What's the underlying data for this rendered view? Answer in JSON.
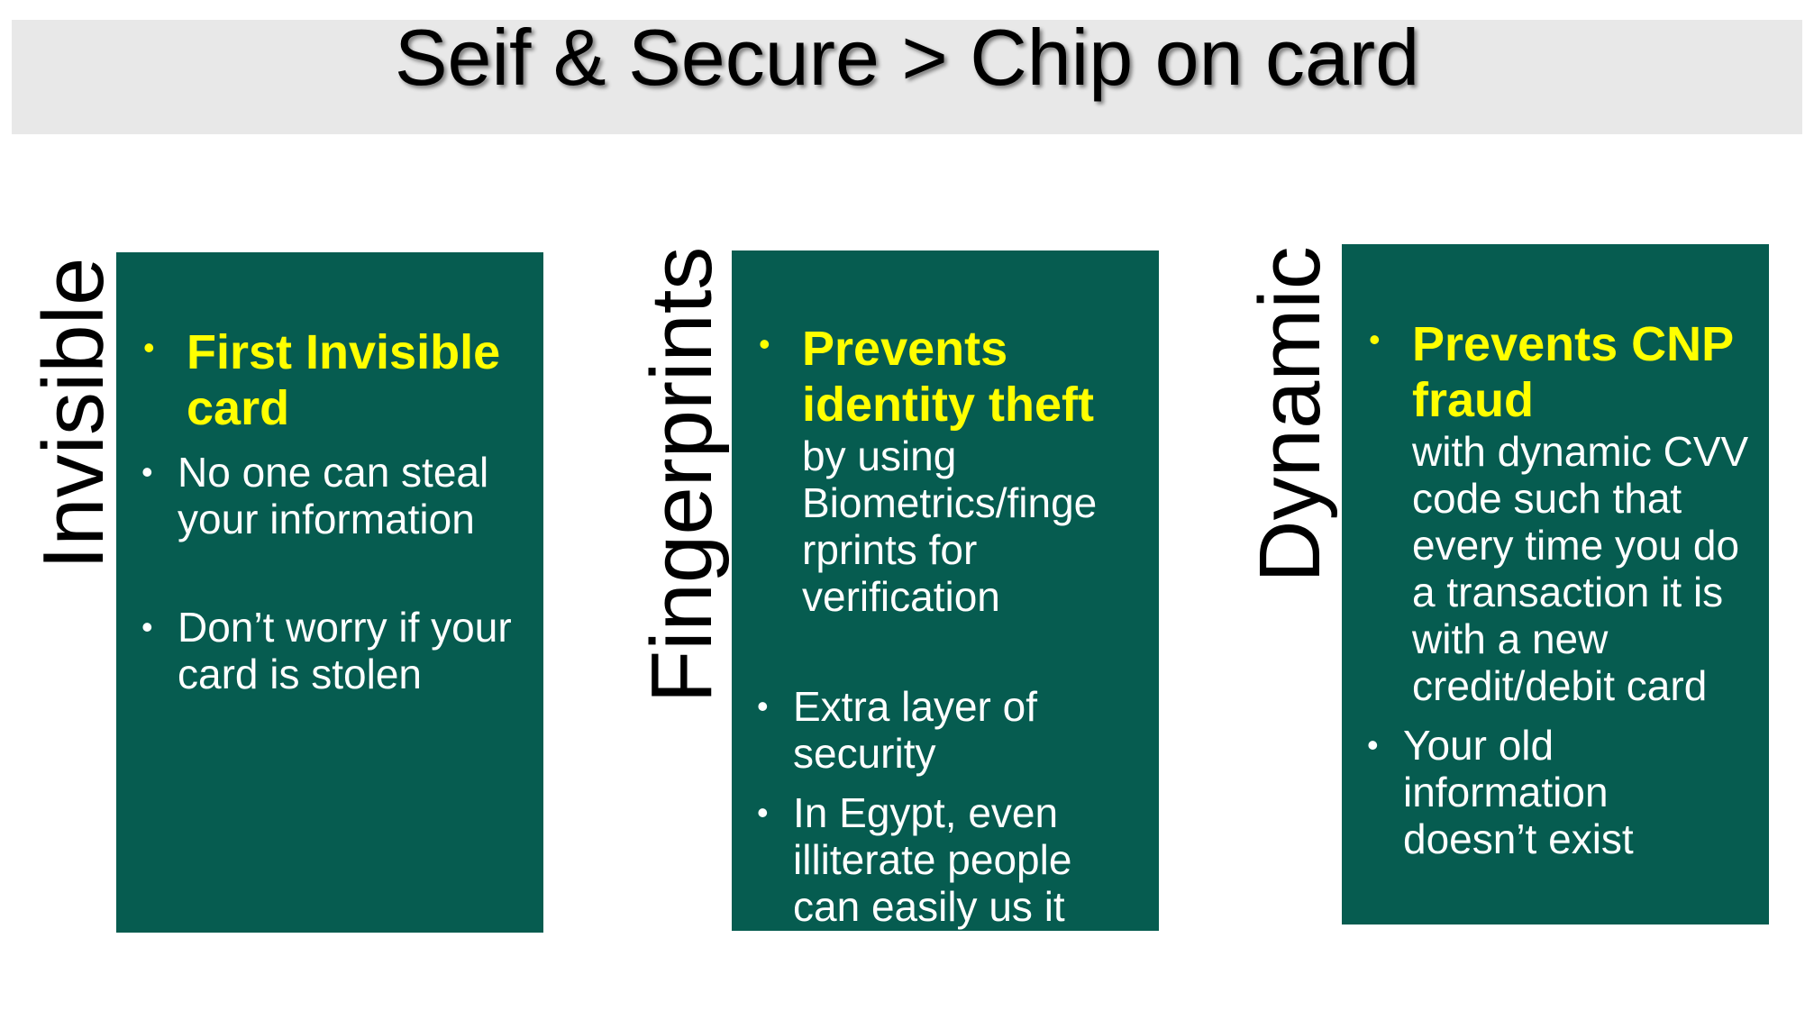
{
  "title": "Seif & Secure > Chip on card",
  "columns": [
    {
      "label": "Invisible",
      "items": [
        {
          "highlight": "First Invisible card",
          "text": ""
        },
        {
          "text": "No one can steal your information"
        },
        {
          "text": "Don’t worry if your card is stolen"
        }
      ]
    },
    {
      "label": "Fingerprints",
      "items": [
        {
          "highlight": "Prevents identity theft",
          "text": "by using Biometrics/finge rprints for verification"
        },
        {
          "text": "Extra layer of security"
        },
        {
          "text": "In Egypt, even illiterate people can easily us it"
        }
      ]
    },
    {
      "label": "Dynamic",
      "items": [
        {
          "highlight": "Prevents CNP fraud",
          "text": "with dynamic CVV code such that every time you do a transaction it is with a new credit/debit card"
        },
        {
          "text": "Your old information doesn’t exist"
        }
      ]
    }
  ],
  "colors": {
    "card_background": "#065c50",
    "highlight_text": "#ffff00",
    "body_text": "#ffffff",
    "title_band": "#e8e8e8"
  }
}
